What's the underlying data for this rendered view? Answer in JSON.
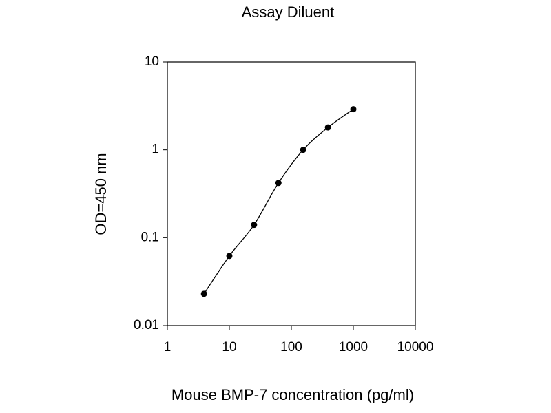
{
  "chart_data": {
    "type": "line",
    "title": "Assay Diluent",
    "xlabel": "Mouse BMP-7 concentration (pg/ml)",
    "ylabel": "OD=450 nm",
    "x": [
      3.9,
      10,
      25,
      62,
      155,
      390,
      1000
    ],
    "values": [
      0.023,
      0.062,
      0.14,
      0.42,
      1.0,
      1.8,
      2.9
    ],
    "color": "#000000",
    "markers": true,
    "xscale": "log",
    "yscale": "log",
    "xlim": [
      1,
      10000
    ],
    "xticks": [
      1,
      10,
      100,
      1000,
      10000
    ],
    "ylim": [
      0.01,
      10
    ],
    "yticks": [
      0.01,
      0.1,
      1,
      10
    ],
    "grid": false
  }
}
